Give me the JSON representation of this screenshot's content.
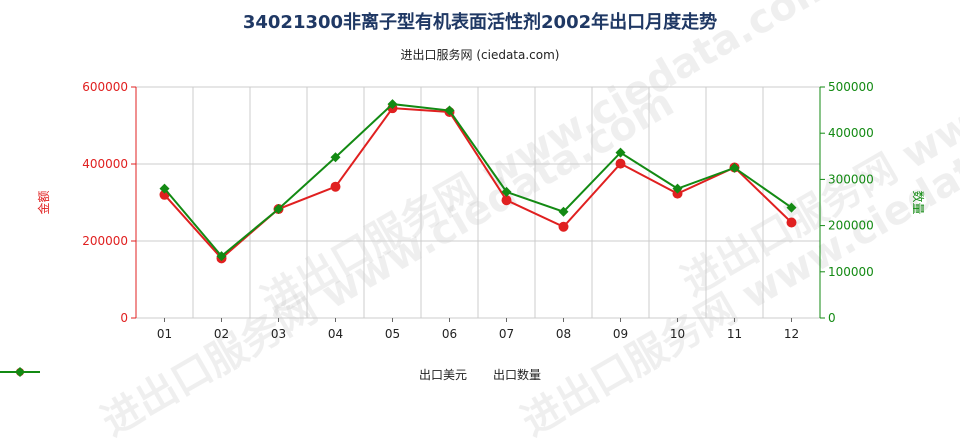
{
  "title": "34021300非离子型有机表面活性剂2002年出口月度走势",
  "subtitle": "进出口服务网 (ciedata.com)",
  "watermark": "进出口服务网 www.ciedata.com",
  "colors": {
    "left_axis": "#e02020",
    "right_axis": "#138a13",
    "grid": "#cccccc"
  },
  "chart_data": {
    "type": "line",
    "categories": [
      "01",
      "02",
      "03",
      "04",
      "05",
      "06",
      "07",
      "08",
      "09",
      "10",
      "11",
      "12"
    ],
    "left_axis": {
      "label": "金额",
      "ylim": [
        0,
        600000
      ],
      "ticks": [
        0,
        200000,
        400000,
        600000
      ]
    },
    "right_axis": {
      "label": "数量",
      "ylim": [
        0,
        500000
      ],
      "ticks": [
        0,
        100000,
        200000,
        300000,
        400000,
        500000
      ]
    },
    "series": [
      {
        "name": "出口美元",
        "axis": "left",
        "color": "#e02020",
        "marker": "circle",
        "values": [
          320000,
          155000,
          283000,
          341000,
          545000,
          535000,
          306000,
          237000,
          401000,
          323000,
          391000,
          248000
        ]
      },
      {
        "name": "出口数量",
        "axis": "right",
        "color": "#138a13",
        "marker": "diamond",
        "values": [
          280000,
          134000,
          236000,
          348000,
          463000,
          449000,
          273000,
          230000,
          358000,
          280000,
          325000,
          239000
        ]
      }
    ],
    "grid": true,
    "legend": "bottom"
  }
}
